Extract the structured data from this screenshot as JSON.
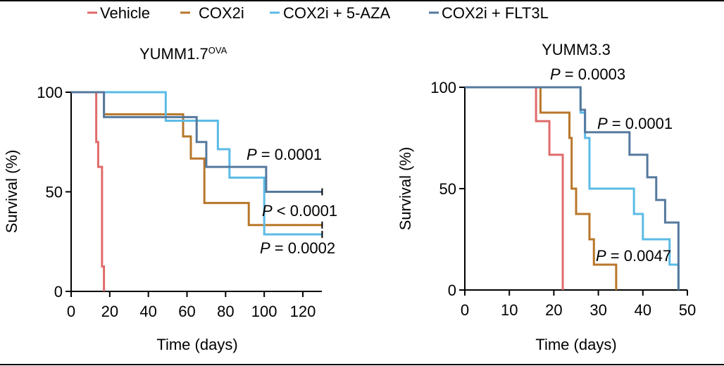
{
  "legend": {
    "items": [
      {
        "label": "Vehicle",
        "color": "#e06b6b"
      },
      {
        "label": "COX2i",
        "color": "#b8772a"
      },
      {
        "label": "COX2i + 5-AZA",
        "color": "#5bbbe6"
      },
      {
        "label": "COX2i + FLT3L",
        "color": "#55799e"
      }
    ]
  },
  "chart_data": [
    {
      "type": "line",
      "title": "YUMM1.7",
      "title_superscript": "OVA",
      "xlabel": "Time (days)",
      "ylabel": "Survival (%)",
      "xlim": [
        0,
        130
      ],
      "ylim": [
        0,
        100
      ],
      "xticks": [
        0,
        20,
        40,
        60,
        80,
        100,
        120
      ],
      "yticks": [
        0,
        50,
        100
      ],
      "grid": false,
      "series": [
        {
          "name": "Vehicle",
          "steps": [
            [
              0,
              100
            ],
            [
              13,
              75
            ],
            [
              14,
              62.5
            ],
            [
              16,
              12.5
            ],
            [
              17,
              0
            ]
          ],
          "end": 17
        },
        {
          "name": "COX2i",
          "steps": [
            [
              0,
              100
            ],
            [
              17,
              88.9
            ],
            [
              58,
              77.8
            ],
            [
              62,
              66.7
            ],
            [
              69,
              44.4
            ],
            [
              92,
              33.3
            ]
          ],
          "end": 130
        },
        {
          "name": "COX2i + 5-AZA",
          "steps": [
            [
              0,
              100
            ],
            [
              49,
              85.7
            ],
            [
              76,
              71.4
            ],
            [
              82,
              57.1
            ],
            [
              100,
              28.6
            ]
          ],
          "end": 130
        },
        {
          "name": "COX2i + FLT3L",
          "steps": [
            [
              0,
              100
            ],
            [
              17,
              87.5
            ],
            [
              65,
              75
            ],
            [
              70,
              62.5
            ],
            [
              101,
              50
            ]
          ],
          "end": 130
        }
      ],
      "annotations": [
        "P = 0.0001",
        "P < 0.0001",
        "P = 0.0002"
      ]
    },
    {
      "type": "line",
      "title": "YUMM3.3",
      "xlabel": "Time (days)",
      "ylabel": "Survival (%)",
      "xlim": [
        0,
        50
      ],
      "ylim": [
        0,
        100
      ],
      "xticks": [
        0,
        10,
        20,
        30,
        40,
        50
      ],
      "yticks": [
        0,
        50,
        100
      ],
      "grid": false,
      "series": [
        {
          "name": "Vehicle",
          "steps": [
            [
              0,
              100
            ],
            [
              16,
              83.3
            ],
            [
              19,
              66.7
            ],
            [
              22,
              0
            ]
          ],
          "end": 22
        },
        {
          "name": "COX2i",
          "steps": [
            [
              0,
              100
            ],
            [
              17,
              87.5
            ],
            [
              23.5,
              75
            ],
            [
              24,
              50
            ],
            [
              25,
              37.5
            ],
            [
              28,
              25
            ],
            [
              29,
              12.5
            ],
            [
              34,
              0
            ]
          ],
          "end": 34
        },
        {
          "name": "COX2i + 5-AZA",
          "steps": [
            [
              0,
              100
            ],
            [
              26,
              87.5
            ],
            [
              27,
              75
            ],
            [
              28,
              50
            ],
            [
              38,
              37.5
            ],
            [
              40,
              25
            ],
            [
              46,
              12.5
            ],
            [
              48,
              0
            ]
          ],
          "end": 48
        },
        {
          "name": "COX2i + FLT3L",
          "steps": [
            [
              0,
              100
            ],
            [
              26,
              88.9
            ],
            [
              27,
              77.8
            ],
            [
              37,
              66.7
            ],
            [
              41,
              55.6
            ],
            [
              43,
              44.4
            ],
            [
              45,
              33.3
            ],
            [
              48,
              0
            ]
          ],
          "end": 48
        }
      ],
      "annotations": [
        "P = 0.0003",
        "P = 0.0001",
        "P = 0.0047"
      ]
    }
  ]
}
